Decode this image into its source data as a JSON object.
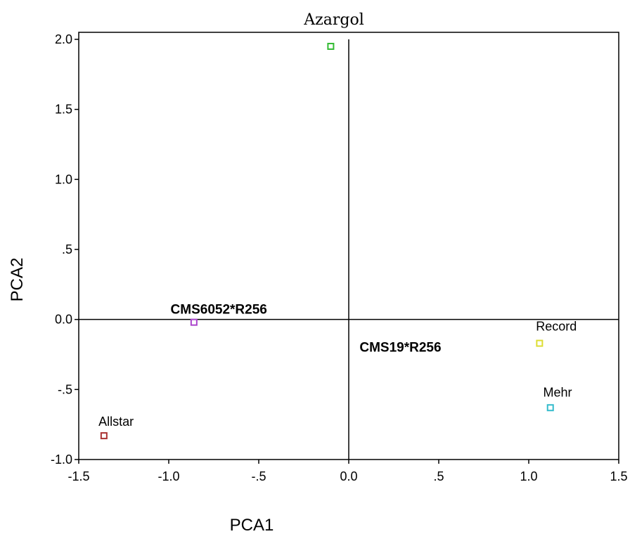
{
  "chart_data": {
    "type": "scatter",
    "title": "Azargol",
    "xlabel": "PCA1",
    "ylabel": "PCA2",
    "xlim": [
      -1.5,
      1.5
    ],
    "ylim": [
      -1.0,
      2.0
    ],
    "x_ticks": [
      {
        "value": -1.5,
        "label": "-1.5"
      },
      {
        "value": -1.0,
        "label": "-1.0"
      },
      {
        "value": -0.5,
        "label": "-.5"
      },
      {
        "value": 0.0,
        "label": "0.0"
      },
      {
        "value": 0.5,
        "label": ".5"
      },
      {
        "value": 1.0,
        "label": "1.0"
      },
      {
        "value": 1.5,
        "label": "1.5"
      }
    ],
    "y_ticks": [
      {
        "value": 2.0,
        "label": "2.0"
      },
      {
        "value": 1.5,
        "label": "1.5"
      },
      {
        "value": 1.0,
        "label": "1.0"
      },
      {
        "value": 0.5,
        "label": ".5"
      },
      {
        "value": 0.0,
        "label": "0.0"
      },
      {
        "value": -0.5,
        "label": "-.5"
      },
      {
        "value": -1.0,
        "label": "-1.0"
      }
    ],
    "reference_lines": {
      "x": 0,
      "y": 0
    },
    "grid": false,
    "points": [
      {
        "x": -0.1,
        "y": 1.95,
        "color": "#33bb33"
      },
      {
        "x": -0.86,
        "y": -0.02,
        "color": "#aa44cc"
      },
      {
        "x": -1.36,
        "y": -0.83,
        "color": "#aa3333"
      },
      {
        "x": 1.06,
        "y": -0.17,
        "color": "#dddd33"
      },
      {
        "x": 1.12,
        "y": -0.63,
        "color": "#33bbcc"
      }
    ],
    "annotations": [
      {
        "text": "Allstar",
        "x": -1.39,
        "y": -0.76,
        "bold": false
      },
      {
        "text": "Record",
        "x": 1.04,
        "y": -0.08,
        "bold": false
      },
      {
        "text": "Mehr",
        "x": 1.08,
        "y": -0.55,
        "bold": false
      },
      {
        "text": "CMS6052*R256",
        "x": -0.99,
        "y": 0.04,
        "bold": true
      },
      {
        "text": "CMS19*R256",
        "x": 0.06,
        "y": -0.23,
        "bold": true
      }
    ]
  }
}
